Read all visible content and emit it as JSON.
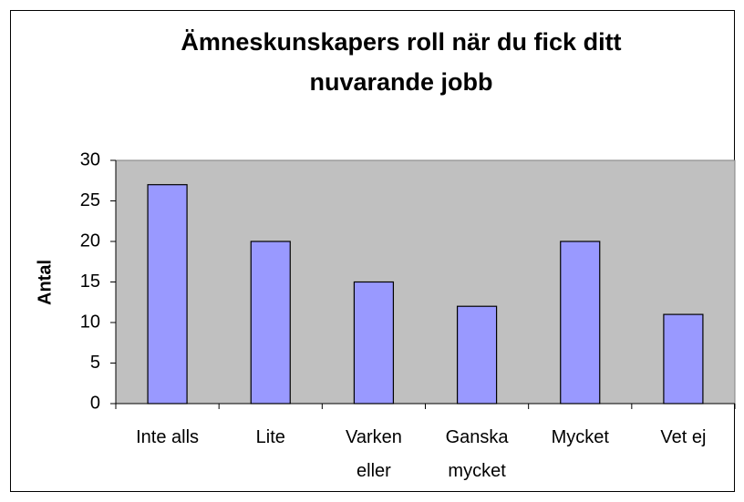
{
  "chart_data": {
    "type": "bar",
    "title": "Ämneskunskapers roll när du fick ditt nuvarande jobb",
    "y_label": "Antal",
    "categories": [
      "Inte alls",
      "Lite",
      "Varken eller",
      "Ganska mycket",
      "Mycket",
      "Vet ej"
    ],
    "values": [
      27,
      20,
      15,
      12,
      20,
      11
    ],
    "color": "#9999ff",
    "ylim": [
      0,
      30
    ],
    "yticks": [
      0,
      5,
      10,
      15,
      20,
      25,
      30
    ],
    "grid": false
  }
}
